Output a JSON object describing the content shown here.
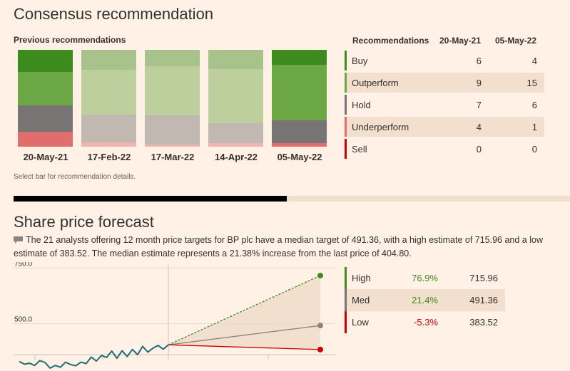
{
  "consensus": {
    "title": "Consensus recommendation",
    "subtitle": "Previous recommendations",
    "hint": "Select bar for recommendation details.",
    "table_header": {
      "col0": "Recommendations",
      "col1": "20-May-21",
      "col2": "05-May-22"
    },
    "rows": [
      {
        "label": "Buy",
        "v1": "6",
        "v2": "4",
        "color": "#3d8b1e"
      },
      {
        "label": "Outperform",
        "v1": "9",
        "v2": "15",
        "color": "#6ca746"
      },
      {
        "label": "Hold",
        "v1": "7",
        "v2": "6",
        "color": "#777473"
      },
      {
        "label": "Underperform",
        "v1": "4",
        "v2": "1",
        "color": "#e06e6e"
      },
      {
        "label": "Sell",
        "v1": "0",
        "v2": "0",
        "color": "#cc0000"
      }
    ]
  },
  "forecast": {
    "title": "Share price forecast",
    "description": "The 21 analysts offering 12 month price targets for BP plc have a median target of 491.36, with a high estimate of 715.96 and a low estimate of 383.52. The median estimate represents a 21.38% increase from the last price of 404.80.",
    "rows": [
      {
        "label": "High",
        "pct": "76.9%",
        "value": "715.96",
        "bar_color": "#3d8b1e",
        "pct_color": "#3d8b1e"
      },
      {
        "label": "Med",
        "pct": "21.4%",
        "value": "491.36",
        "bar_color": "#777473",
        "pct_color": "#3d8b1e"
      },
      {
        "label": "Low",
        "pct": "-5.3%",
        "value": "383.52",
        "bar_color": "#cc0000",
        "pct_color": "#cc0000"
      }
    ]
  },
  "chart_data": [
    {
      "type": "bar",
      "stacked": true,
      "percent": true,
      "categories": [
        "20-May-21",
        "17-Feb-22",
        "17-Mar-22",
        "14-Apr-22",
        "05-May-22"
      ],
      "series": [
        {
          "name": "Buy",
          "values": [
            6,
            5,
            4,
            5,
            4
          ],
          "color": "#3d8b1e"
        },
        {
          "name": "Outperform",
          "values": [
            9,
            11,
            12,
            14,
            15
          ],
          "color": "#6ca746"
        },
        {
          "name": "Hold",
          "values": [
            7,
            7,
            7,
            5,
            6
          ],
          "color": "#777473"
        },
        {
          "name": "Underperform",
          "values": [
            4,
            1,
            0.6,
            1,
            1
          ],
          "color": "#e06e6e"
        },
        {
          "name": "Sell",
          "values": [
            0,
            0,
            0,
            0,
            0
          ],
          "color": "#cc0000"
        }
      ],
      "highlight": [
        0,
        4
      ]
    },
    {
      "type": "line",
      "yticks": [
        500,
        750
      ],
      "ytick_labels": [
        "500.0",
        "750.0"
      ],
      "ylim": [
        300,
        760
      ],
      "history": [
        330,
        318,
        322,
        312,
        334,
        326,
        300,
        312,
        304,
        327,
        316,
        311,
        327,
        320,
        350,
        332,
        357,
        348,
        377,
        344,
        378,
        352,
        384,
        360,
        398,
        372,
        390,
        402,
        385,
        405
      ],
      "last": 404.8,
      "targets": {
        "high": 715.96,
        "median": 491.36,
        "low": 383.52
      },
      "colors": {
        "history": "#1f6b75",
        "high": "#3d8b1e",
        "median": "#8a8582",
        "low": "#cc0000",
        "fan": "#f2dfce"
      }
    }
  ]
}
